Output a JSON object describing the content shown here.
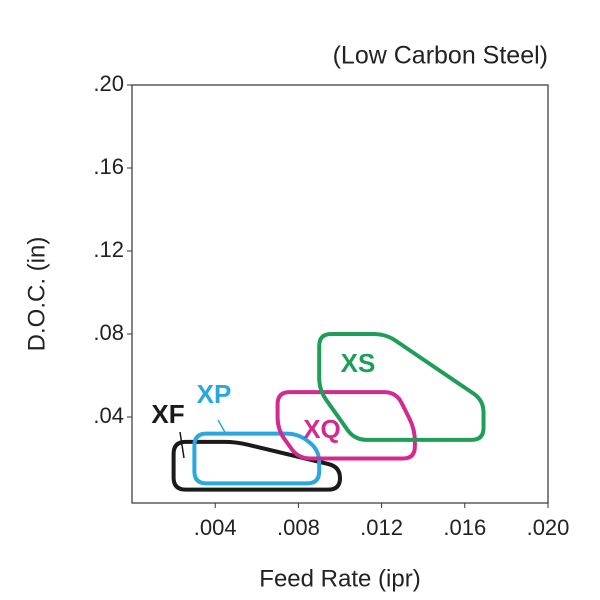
{
  "chart_data": {
    "type": "region",
    "title": "(Low Carbon Steel)",
    "x_label": "Feed Rate (ipr)",
    "y_label": "D.O.C. (in)",
    "xlim": [
      0,
      0.02
    ],
    "ylim": [
      0,
      0.2
    ],
    "xticks": [
      {
        "value": 0.004,
        "label": ".004"
      },
      {
        "value": 0.008,
        "label": ".008"
      },
      {
        "value": 0.012,
        "label": ".012"
      },
      {
        "value": 0.016,
        "label": ".016"
      },
      {
        "value": 0.02,
        "label": ".020"
      }
    ],
    "yticks": [
      {
        "value": 0.04,
        "label": ".04"
      },
      {
        "value": 0.08,
        "label": ".08"
      },
      {
        "value": 0.12,
        "label": ".12"
      },
      {
        "value": 0.16,
        "label": ".16"
      },
      {
        "value": 0.2,
        "label": ".20"
      }
    ],
    "series": [
      {
        "name": "XF",
        "color": "#1a1a1a",
        "x": [
          0.002,
          0.005,
          0.01,
          0.01,
          0.002
        ],
        "y": [
          0.028,
          0.028,
          0.016,
          0.005,
          0.005
        ]
      },
      {
        "name": "XP",
        "color": "#2aa7df",
        "x": [
          0.003,
          0.008,
          0.009,
          0.009,
          0.003
        ],
        "y": [
          0.032,
          0.032,
          0.024,
          0.008,
          0.008
        ]
      },
      {
        "name": "XQ",
        "color": "#d42a8f",
        "x": [
          0.007,
          0.0127,
          0.0136,
          0.0136,
          0.008,
          0.007
        ],
        "y": [
          0.052,
          0.052,
          0.034,
          0.02,
          0.02,
          0.034
        ]
      },
      {
        "name": "XS",
        "color": "#1f9e58",
        "x": [
          0.009,
          0.0122,
          0.0169,
          0.0169,
          0.0107,
          0.009
        ],
        "y": [
          0.08,
          0.08,
          0.048,
          0.029,
          0.029,
          0.053
        ]
      }
    ]
  }
}
